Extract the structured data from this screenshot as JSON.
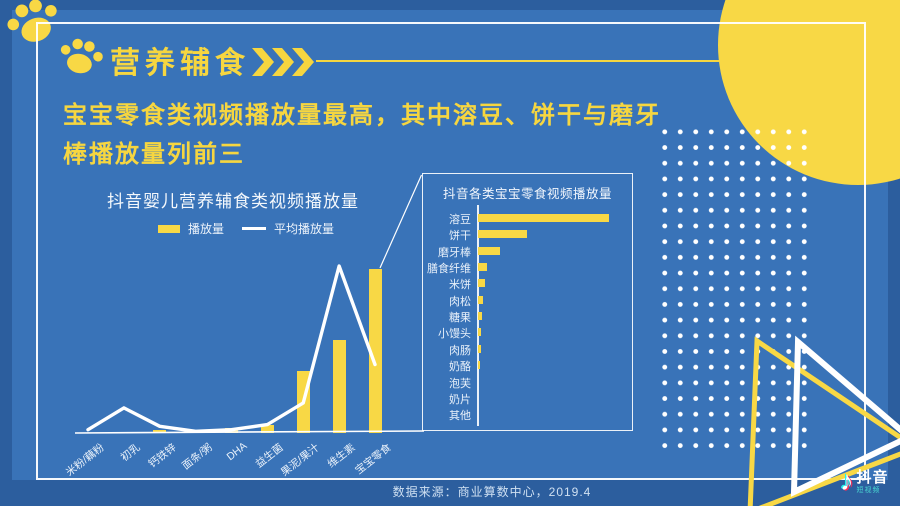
{
  "header": {
    "badge": "营养辅食",
    "headline_line1": "宝宝零食类视频播放量最高，其中溶豆、饼干与磨牙",
    "headline_line2": "棒播放量列前三"
  },
  "chart_data": [
    {
      "type": "bar",
      "title": "抖音婴儿营养辅食类视频播放量",
      "categories": [
        "米粉/藕粉",
        "初乳",
        "钙铁锌",
        "面条/粥",
        "DHA",
        "益生菌",
        "果泥/果汁",
        "维生素",
        "宝宝零食"
      ],
      "series": [
        {
          "name": "播放量",
          "kind": "bar",
          "values": [
            0,
            0,
            2,
            2,
            3,
            5,
            38,
            57,
            100
          ]
        },
        {
          "name": "平均播放量",
          "kind": "line",
          "values": [
            2,
            15,
            4,
            1,
            2,
            5,
            18,
            100,
            41
          ]
        }
      ],
      "ylabel": "",
      "xlabel": "",
      "values_unit": "relative play-volume index (est. from bar pixels, max = 100)",
      "legend_position": "top",
      "grid": false
    },
    {
      "type": "bar",
      "orientation": "horizontal",
      "title": "抖音各类宝宝零食视频播放量",
      "categories": [
        "溶豆",
        "饼干",
        "磨牙棒",
        "膳食纤维",
        "米饼",
        "肉松",
        "糖果",
        "小馒头",
        "肉肠",
        "奶酪",
        "泡芙",
        "奶片",
        "其他"
      ],
      "values": [
        100,
        37,
        17,
        7,
        5,
        4,
        3,
        2,
        2,
        1.5,
        0,
        0,
        0
      ],
      "values_unit": "relative play-volume index (est. from bar pixels, max = 100)",
      "grid": false
    }
  ],
  "footer": {
    "source": "数据来源：商业算数中心，2019.4"
  },
  "brand": {
    "name": "抖音",
    "tagline": "短视频"
  },
  "icons": {
    "paw": "paw-print",
    "chevrons": "triple-chevron-right",
    "music_note": "♪"
  },
  "colors": {
    "background_outer": "#2c5e9e",
    "background_inner": "#3973b8",
    "accent_yellow": "#f8d845",
    "text_white": "#ffffff",
    "douyin_cyan": "#25f4ee",
    "douyin_red": "#fe2c55"
  }
}
